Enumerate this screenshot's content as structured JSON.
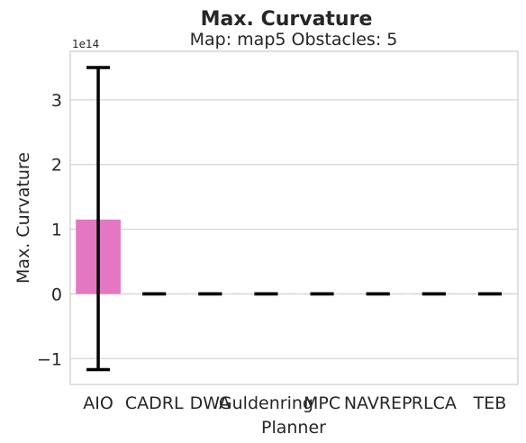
{
  "chart_data": {
    "type": "bar",
    "title": "Max. Curvature",
    "subtitle": "Map: map5 Obstacles: 5",
    "xlabel": "Planner",
    "ylabel": "Max. Curvature",
    "y_offset_label": "1e14",
    "y_scale": 100000000000000.0,
    "ylim": [
      -1.4,
      3.75
    ],
    "yticks": [
      -1,
      0,
      1,
      2,
      3
    ],
    "ytick_labels": [
      "−1",
      "0",
      "1",
      "2",
      "3"
    ],
    "grid": true,
    "categories": [
      "AIO",
      "CADRL",
      "DWA",
      "Guldenring",
      "MPC",
      "NAVREP",
      "RLCA",
      "TEB"
    ],
    "tick_labels": [
      "AIO",
      "CADRL",
      "DWA",
      "Guldenring",
      "MPC",
      "NAVREP",
      "RLCA",
      "TEB"
    ],
    "values": [
      1.15,
      0,
      0,
      0,
      0,
      0,
      0,
      0
    ],
    "error_low": [
      -1.17,
      0,
      0,
      0,
      0,
      0,
      0,
      0
    ],
    "error_high": [
      3.5,
      0,
      0,
      0,
      0,
      0,
      0,
      0
    ],
    "bar_colors": [
      "#e377c2",
      "#e377c2",
      "#e377c2",
      "#e377c2",
      "#e377c2",
      "#e377c2",
      "#e377c2",
      "#e377c2"
    ],
    "errorbar_color": "#000000",
    "grid_color": "#cccccc"
  }
}
